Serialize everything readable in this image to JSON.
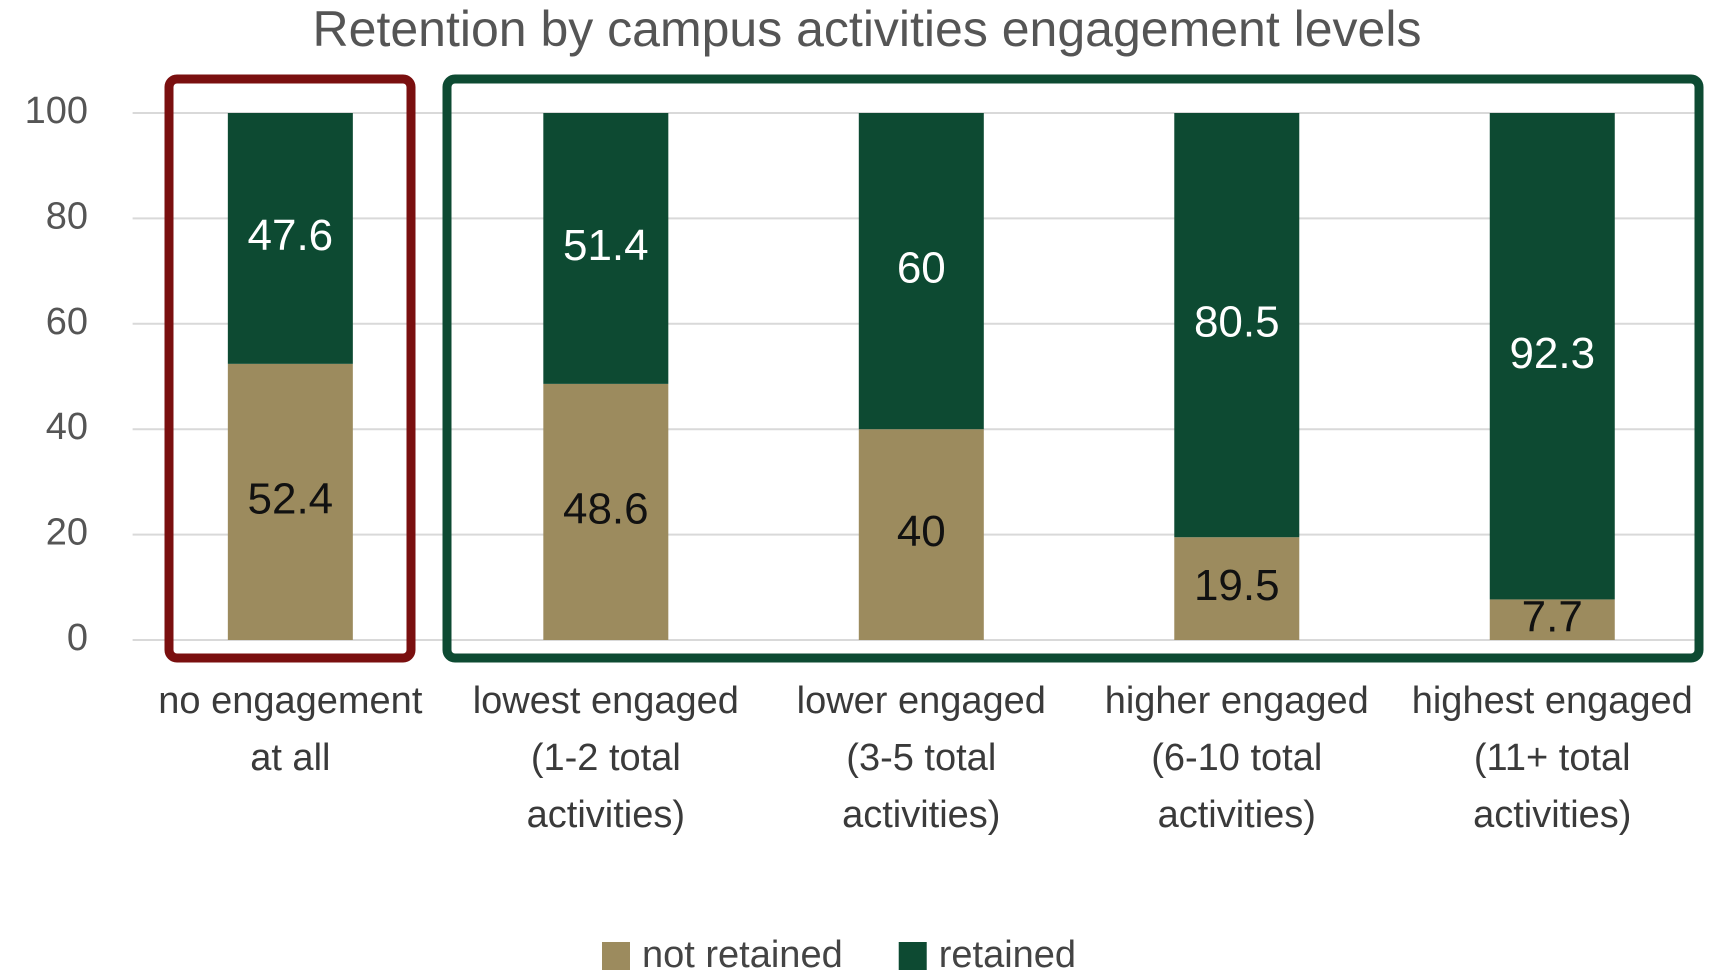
{
  "chart_data": {
    "type": "stacked_bar",
    "title": "Retention by campus activities engagement levels",
    "categories": [
      "no engagement at all",
      "lowest engaged (1-2 total activities)",
      "lower engaged (3-5 total activities)",
      "higher engaged (6-10 total activities)",
      "highest engaged (11+ total activities)"
    ],
    "series": [
      {
        "name": "not retained",
        "color": "#9c8b5e",
        "values": [
          52.4,
          48.6,
          40,
          19.5,
          7.7
        ]
      },
      {
        "name": "retained",
        "color": "#0d4a32",
        "values": [
          47.6,
          51.4,
          60,
          80.5,
          92.3
        ]
      }
    ],
    "ylim": [
      0,
      100
    ],
    "yticks": [
      0,
      20,
      40,
      60,
      80,
      100
    ],
    "grid": true,
    "legend": "bottom"
  }
}
